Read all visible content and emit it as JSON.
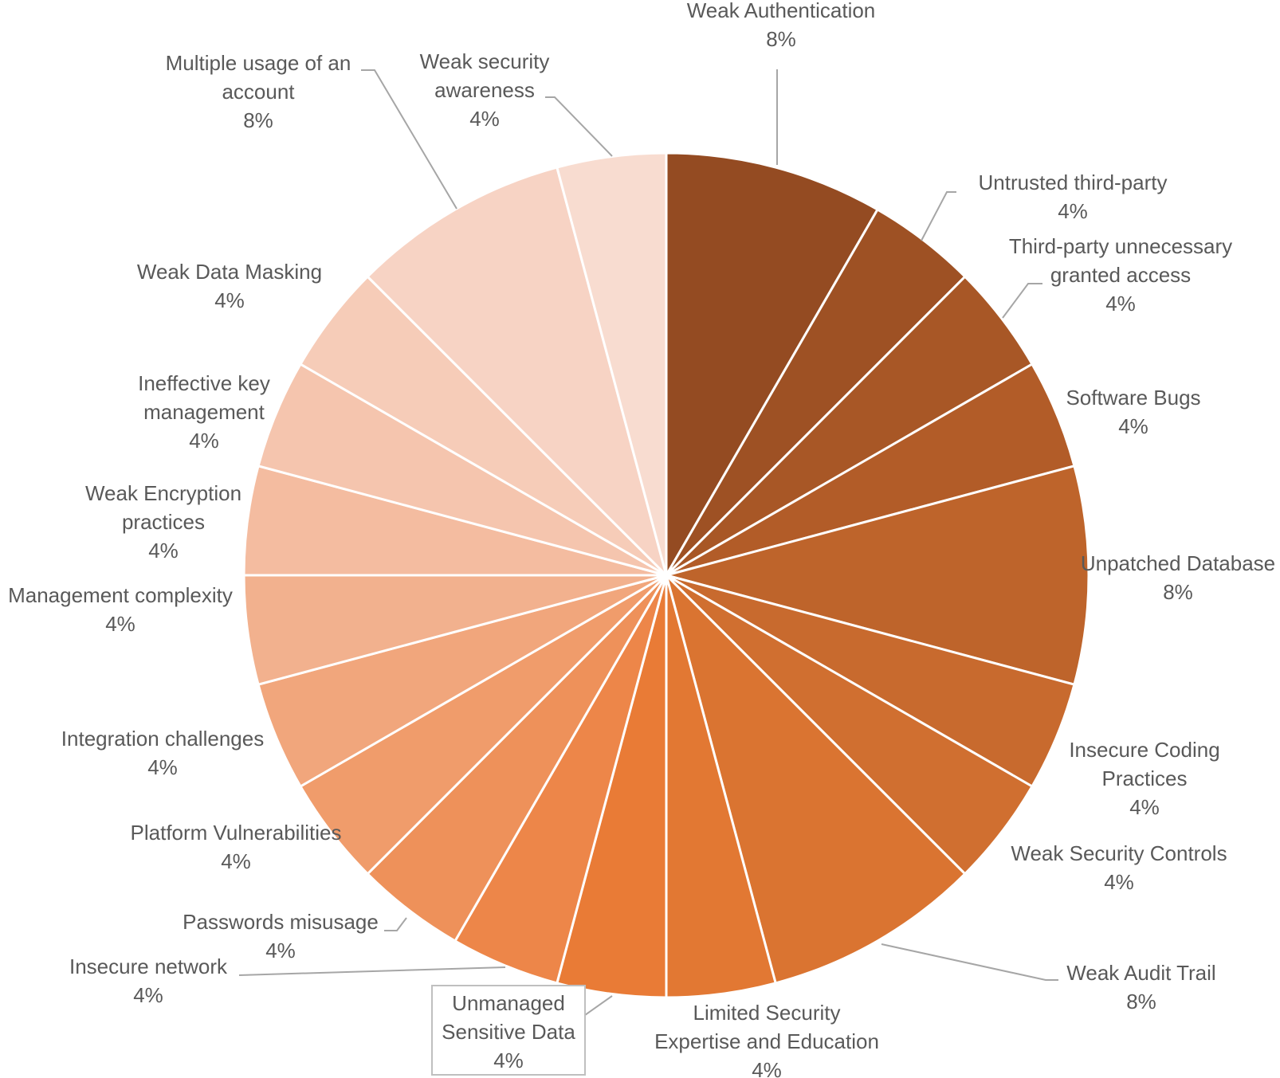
{
  "chart_data": {
    "type": "pie",
    "title": "",
    "slices": [
      {
        "label": "Weak Authentication",
        "value": 8,
        "value_label": "8%",
        "color": "#944b22"
      },
      {
        "label": "Untrusted third-party",
        "value": 4,
        "value_label": "4%",
        "color": "#9e5124"
      },
      {
        "label": "Third-party unnecessary granted access",
        "value": 4,
        "value_label": "4%",
        "color": "#a85726"
      },
      {
        "label": "Software Bugs",
        "value": 4,
        "value_label": "4%",
        "color": "#b25c28"
      },
      {
        "label": "Unpatched Database",
        "value": 8,
        "value_label": "8%",
        "color": "#be642b"
      },
      {
        "label": "Insecure Coding Practices",
        "value": 4,
        "value_label": "4%",
        "color": "#c86a2e"
      },
      {
        "label": "Weak Security Controls",
        "value": 4,
        "value_label": "4%",
        "color": "#d06f30"
      },
      {
        "label": "Weak Audit Trail",
        "value": 8,
        "value_label": "8%",
        "color": "#da7431"
      },
      {
        "label": "Limited Security Expertise and Education",
        "value": 4,
        "value_label": "4%",
        "color": "#e27833"
      },
      {
        "label": "Unmanaged Sensitive Data",
        "value": 4,
        "value_label": "4%",
        "color": "#e97b36"
      },
      {
        "label": "Insecure network",
        "value": 4,
        "value_label": "4%",
        "color": "#ed8649"
      },
      {
        "label": "Passwords misusage",
        "value": 4,
        "value_label": "4%",
        "color": "#ee915a"
      },
      {
        "label": "Platform Vulnerabilities",
        "value": 4,
        "value_label": "4%",
        "color": "#f09c6b"
      },
      {
        "label": "Integration challenges",
        "value": 4,
        "value_label": "4%",
        "color": "#f1a67c"
      },
      {
        "label": "Management complexity",
        "value": 4,
        "value_label": "4%",
        "color": "#f2b18e"
      },
      {
        "label": "Weak Encryption practices",
        "value": 4,
        "value_label": "4%",
        "color": "#f4bca0"
      },
      {
        "label": "Ineffective key management",
        "value": 4,
        "value_label": "4%",
        "color": "#f5c5ae"
      },
      {
        "label": "Weak Data Masking",
        "value": 4,
        "value_label": "4%",
        "color": "#f6ccb8"
      },
      {
        "label": "Multiple usage of an account",
        "value": 8,
        "value_label": "8%",
        "color": "#f7d3c4"
      },
      {
        "label": "Weak security awareness",
        "value": 4,
        "value_label": "4%",
        "color": "#f8dcd0"
      }
    ],
    "legend": "none",
    "data_labels": "outside with leader lines"
  }
}
